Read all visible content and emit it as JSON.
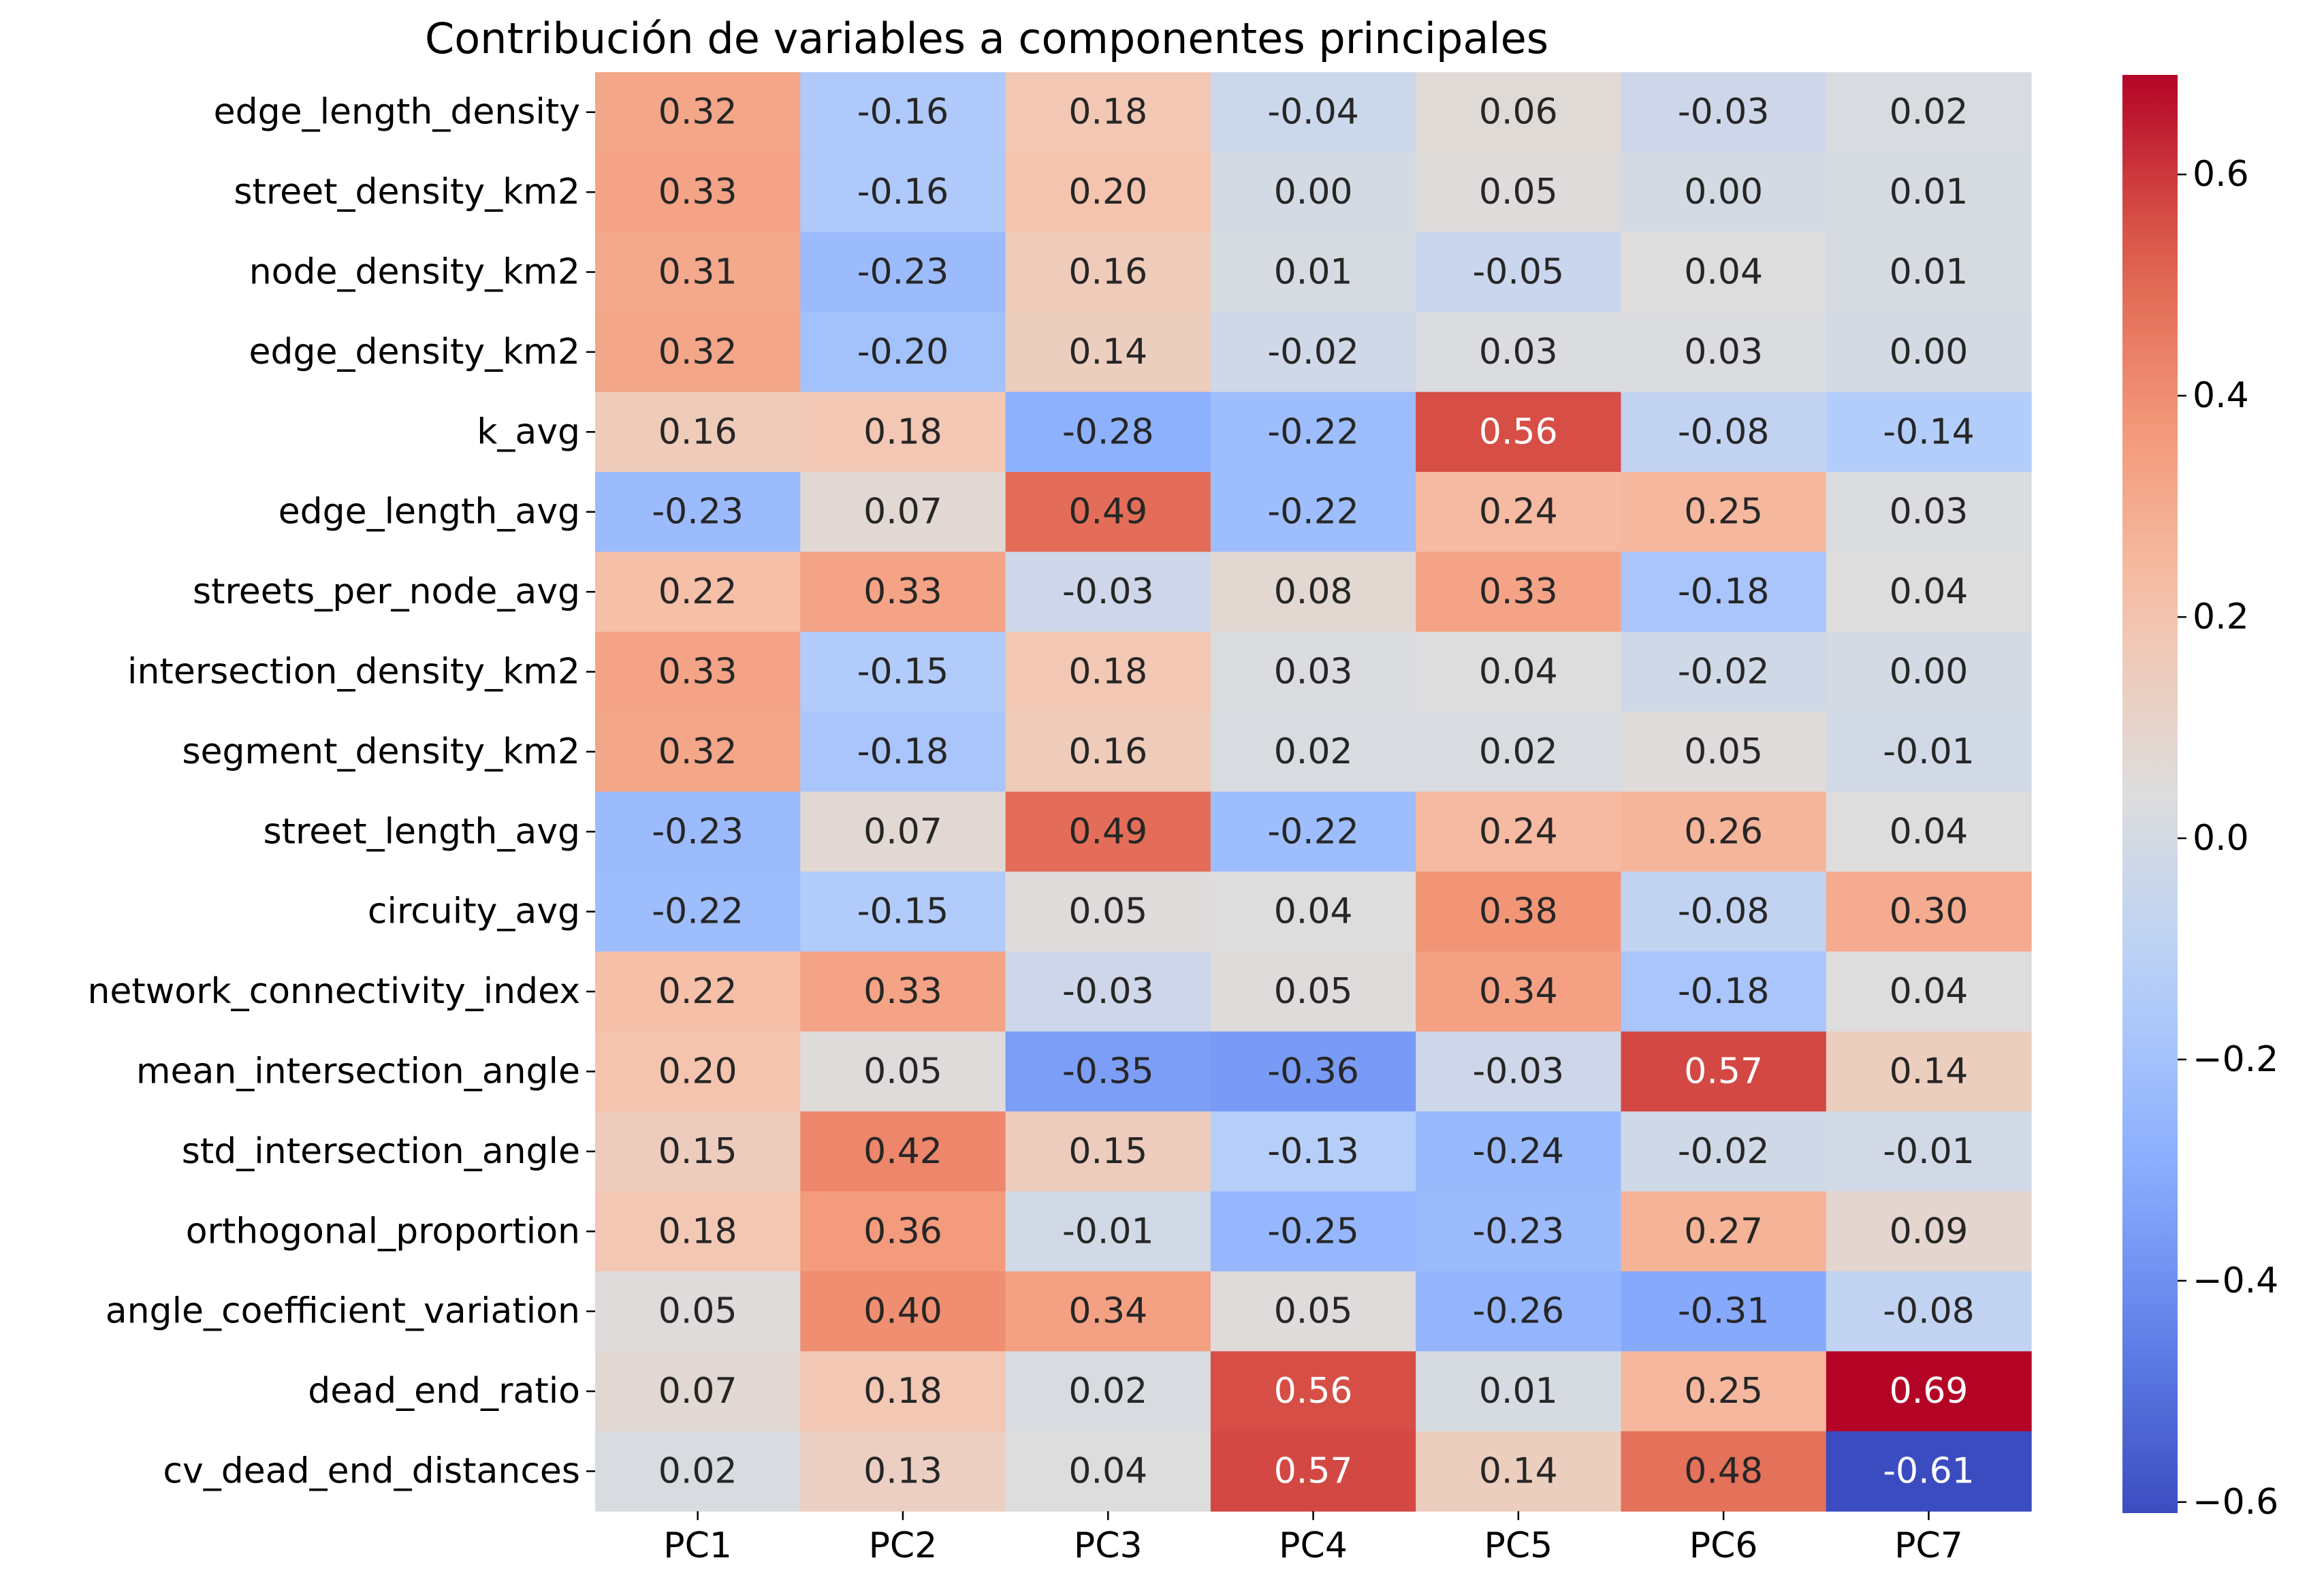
{
  "chart_data": {
    "type": "heatmap",
    "title": "Contribución de variables a componentes principales",
    "xlabel": "",
    "ylabel": "",
    "columns": [
      "PC1",
      "PC2",
      "PC3",
      "PC4",
      "PC5",
      "PC6",
      "PC7"
    ],
    "rows": [
      "edge_length_density",
      "street_density_km2",
      "node_density_km2",
      "edge_density_km2",
      "k_avg",
      "edge_length_avg",
      "streets_per_node_avg",
      "intersection_density_km2",
      "segment_density_km2",
      "street_length_avg",
      "circuity_avg",
      "network_connectivity_index",
      "mean_intersection_angle",
      "std_intersection_angle",
      "orthogonal_proportion",
      "angle_coefficient_variation",
      "dead_end_ratio",
      "cv_dead_end_distances"
    ],
    "values": [
      [
        0.32,
        -0.16,
        0.18,
        -0.04,
        0.06,
        -0.03,
        0.02
      ],
      [
        0.33,
        -0.16,
        0.2,
        0.0,
        0.05,
        -0.0,
        0.01
      ],
      [
        0.31,
        -0.23,
        0.16,
        0.01,
        -0.05,
        0.04,
        0.01
      ],
      [
        0.32,
        -0.2,
        0.14,
        -0.02,
        0.03,
        0.03,
        0.0
      ],
      [
        0.16,
        0.18,
        -0.28,
        -0.22,
        0.56,
        -0.08,
        -0.14
      ],
      [
        -0.23,
        0.07,
        0.49,
        -0.22,
        0.24,
        0.25,
        0.03
      ],
      [
        0.22,
        0.33,
        -0.03,
        0.08,
        0.33,
        -0.18,
        0.04
      ],
      [
        0.33,
        -0.15,
        0.18,
        0.03,
        0.04,
        -0.02,
        -0.0
      ],
      [
        0.32,
        -0.18,
        0.16,
        0.02,
        0.02,
        0.05,
        -0.01
      ],
      [
        -0.23,
        0.07,
        0.49,
        -0.22,
        0.24,
        0.26,
        0.04
      ],
      [
        -0.22,
        -0.15,
        0.05,
        0.04,
        0.38,
        -0.08,
        0.3
      ],
      [
        0.22,
        0.33,
        -0.03,
        0.05,
        0.34,
        -0.18,
        0.04
      ],
      [
        0.2,
        0.05,
        -0.35,
        -0.36,
        -0.03,
        0.57,
        0.14
      ],
      [
        0.15,
        0.42,
        0.15,
        -0.13,
        -0.24,
        -0.02,
        -0.01
      ],
      [
        0.18,
        0.36,
        -0.01,
        -0.25,
        -0.23,
        0.27,
        0.09
      ],
      [
        0.05,
        0.4,
        0.34,
        0.05,
        -0.26,
        -0.31,
        -0.08
      ],
      [
        0.07,
        0.18,
        0.02,
        0.56,
        0.01,
        0.25,
        0.69
      ],
      [
        0.02,
        0.13,
        0.04,
        0.57,
        0.14,
        0.48,
        -0.61
      ]
    ],
    "value_format_decimals": 2,
    "colormap": "coolwarm",
    "color_range": [
      -0.61,
      0.69
    ],
    "colorbar": {
      "ticks": [
        -0.6,
        -0.4,
        -0.2,
        0.0,
        0.2,
        0.4,
        0.6
      ],
      "tick_labels": [
        "−0.6",
        "−0.4",
        "−0.2",
        "0.0",
        "0.2",
        "0.4",
        "0.6"
      ]
    },
    "annotation_text_colors": {
      "light": "#ffffff",
      "dark": "#262626"
    }
  }
}
